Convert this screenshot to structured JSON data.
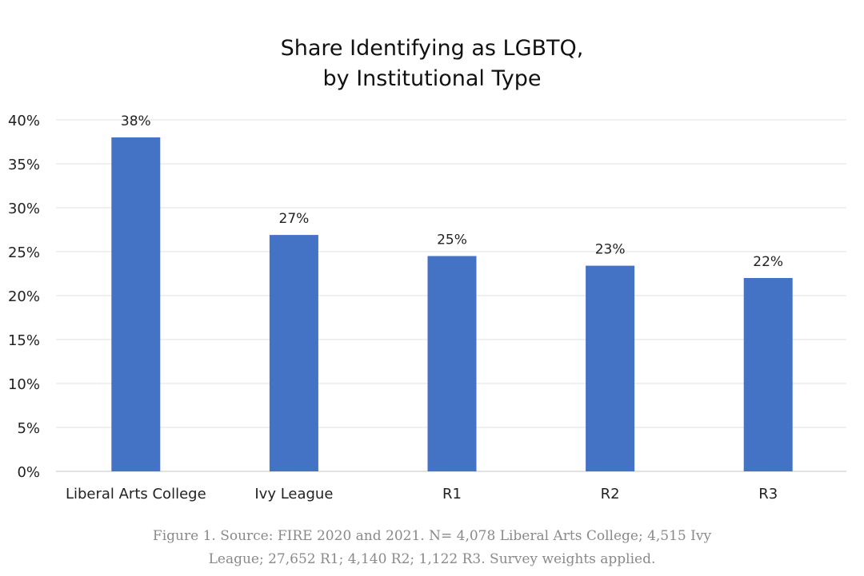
{
  "chart_data": {
    "type": "bar",
    "title_line1": "Share Identifying as LGBTQ,",
    "title_line2": "by Institutional Type",
    "xlabel": "",
    "ylabel": "",
    "categories": [
      "Liberal Arts College",
      "Ivy League",
      "R1",
      "R2",
      "R3"
    ],
    "values": [
      38.0,
      26.9,
      24.5,
      23.4,
      22.0
    ],
    "data_labels": [
      "38%",
      "27%",
      "25%",
      "23%",
      "22%"
    ],
    "ylim": [
      0,
      40
    ],
    "yticks": [
      0,
      5,
      10,
      15,
      20,
      25,
      30,
      35,
      40
    ],
    "ytick_labels": [
      "0%",
      "5%",
      "10%",
      "15%",
      "20%",
      "25%",
      "30%",
      "35%",
      "40%"
    ],
    "grid": true,
    "legend": "none",
    "bar_color": "#4472C4"
  },
  "caption": {
    "line1": "Figure 1. Source: FIRE 2020 and 2021. N= 4,078 Liberal Arts College; 4,515 Ivy",
    "line2": "League; 27,652 R1; 4,140 R2; 1,122 R3. Survey weights applied."
  }
}
